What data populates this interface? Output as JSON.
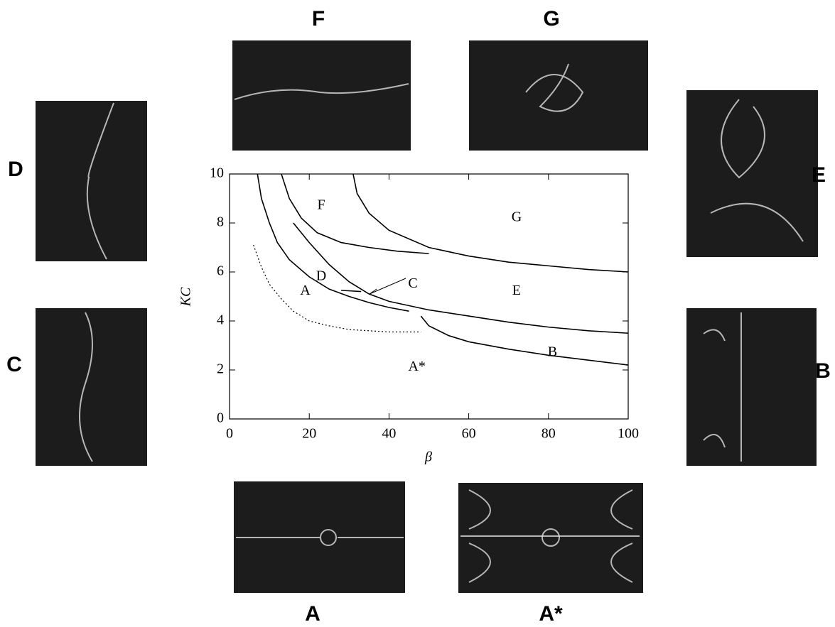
{
  "chart_data": {
    "type": "line",
    "x_label": "β",
    "y_label": "KC",
    "xlim": [
      0,
      100
    ],
    "ylim": [
      0,
      10
    ],
    "xticks": [
      0,
      20,
      40,
      60,
      80,
      100
    ],
    "yticks": [
      0,
      2,
      4,
      6,
      8,
      10
    ],
    "series": [
      {
        "color": "#000000",
        "style": "solid",
        "x": [
          7,
          8,
          10,
          12,
          15,
          20,
          25,
          30,
          35,
          40,
          45
        ],
        "values": [
          10,
          9,
          8,
          7.2,
          6.5,
          5.8,
          5.3,
          5.0,
          4.75,
          4.55,
          4.4
        ]
      },
      {
        "color": "#000000",
        "style": "dotted",
        "x": [
          6,
          8,
          10,
          13,
          16,
          20,
          25,
          30,
          40,
          48
        ],
        "values": [
          7.1,
          6.2,
          5.5,
          4.9,
          4.4,
          4.0,
          3.8,
          3.65,
          3.55,
          3.55
        ]
      },
      {
        "color": "#000000",
        "style": "solid",
        "x": [
          13,
          15,
          18,
          22,
          28,
          35,
          42,
          50
        ],
        "values": [
          10,
          9.0,
          8.2,
          7.6,
          7.2,
          7.0,
          6.85,
          6.75
        ]
      },
      {
        "color": "#000000",
        "style": "solid",
        "x": [
          16,
          20,
          25,
          30,
          35,
          40,
          50,
          60,
          70,
          80,
          90,
          100
        ],
        "values": [
          8,
          7.2,
          6.3,
          5.6,
          5.1,
          4.8,
          4.45,
          4.2,
          3.95,
          3.75,
          3.6,
          3.5
        ]
      },
      {
        "color": "#000000",
        "style": "solid",
        "x": [
          31,
          32,
          35,
          40,
          50,
          60,
          70,
          80,
          90,
          100
        ],
        "values": [
          10,
          9.2,
          8.4,
          7.7,
          7.0,
          6.65,
          6.4,
          6.25,
          6.1,
          6.0
        ]
      },
      {
        "color": "#000000",
        "style": "solid",
        "x": [
          48,
          50,
          55,
          60,
          70,
          80,
          90,
          100
        ],
        "values": [
          4.2,
          3.8,
          3.4,
          3.15,
          2.85,
          2.6,
          2.4,
          2.2
        ]
      },
      {
        "color": "#000000",
        "style": "solid",
        "x": [
          28,
          33
        ],
        "values": [
          5.25,
          5.2
        ]
      }
    ],
    "annotations": [
      {
        "text": "F",
        "x": 23,
        "y": 8.7
      },
      {
        "text": "G",
        "x": 72,
        "y": 8.2
      },
      {
        "text": "D",
        "x": 23,
        "y": 5.8
      },
      {
        "text": "A",
        "x": 19,
        "y": 5.2
      },
      {
        "text": "C",
        "x": 46,
        "y": 5.5
      },
      {
        "text": "E",
        "x": 72,
        "y": 5.2
      },
      {
        "text": "B",
        "x": 81,
        "y": 2.7
      },
      {
        "text": "A*",
        "x": 47,
        "y": 2.1
      }
    ]
  },
  "panels": [
    {
      "label": "F"
    },
    {
      "label": "G"
    },
    {
      "label": "D"
    },
    {
      "label": "E"
    },
    {
      "label": "C"
    },
    {
      "label": "B"
    },
    {
      "label": "A"
    },
    {
      "label": "A*"
    }
  ]
}
